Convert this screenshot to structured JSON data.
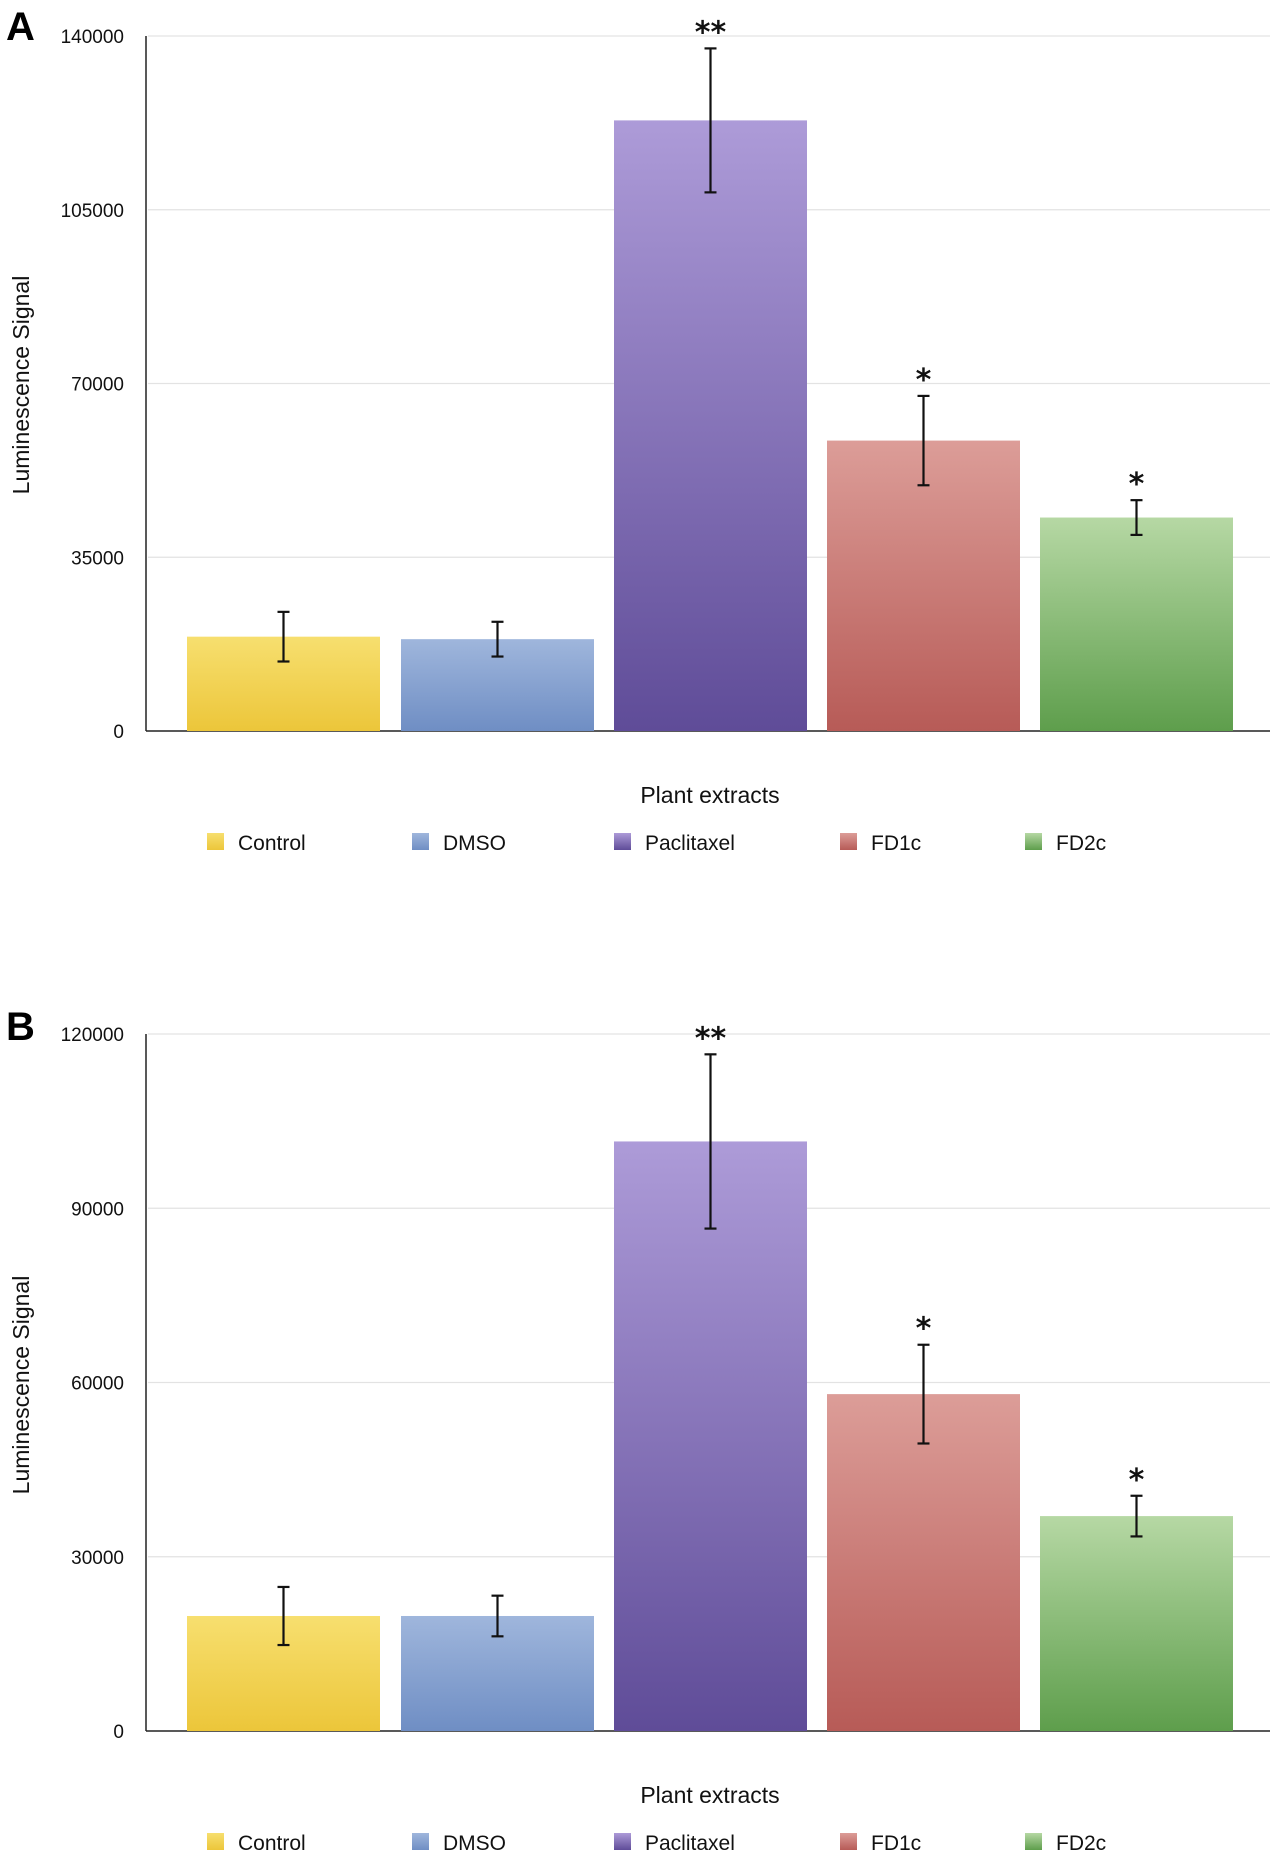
{
  "colors": {
    "Control": [
      "#f7df6f",
      "#ecc63a"
    ],
    "DMSO": [
      "#9fb6dc",
      "#6f8ec4"
    ],
    "Paclitaxel": [
      "#ad9bd8",
      "#5f4c98"
    ],
    "FD1c": [
      "#dc9d98",
      "#b75b57"
    ],
    "FD2c": [
      "#b6d8a4",
      "#5e9e4c"
    ]
  },
  "chart_data": [
    {
      "panel": "A",
      "type": "bar",
      "xlabel": "Plant extracts",
      "ylabel": "Luminescence Signal",
      "ylim": [
        0,
        140000
      ],
      "yticks": [
        "0",
        "35000",
        "70000",
        "105000",
        "140000"
      ],
      "grid": true,
      "legend_position": "bottom",
      "categories": [
        "Control",
        "DMSO",
        "Paclitaxel",
        "FD1c",
        "FD2c"
      ],
      "values": [
        19000,
        18500,
        123000,
        58500,
        43000
      ],
      "errors": [
        5000,
        3500,
        14500,
        9000,
        3500
      ],
      "significance": [
        "",
        "",
        "**",
        "*",
        "*"
      ]
    },
    {
      "panel": "B",
      "type": "bar",
      "xlabel": "Plant extracts",
      "ylabel": "Luminescence Signal",
      "ylim": [
        0,
        120000
      ],
      "yticks": [
        "0",
        "30000",
        "60000",
        "90000",
        "120000"
      ],
      "grid": true,
      "legend_position": "bottom",
      "categories": [
        "Control",
        "DMSO",
        "Paclitaxel",
        "FD1c",
        "FD2c"
      ],
      "values": [
        19800,
        19800,
        101500,
        58000,
        37000
      ],
      "errors": [
        5000,
        3500,
        15000,
        8500,
        3500
      ],
      "significance": [
        "",
        "",
        "**",
        "*",
        "*"
      ]
    }
  ]
}
